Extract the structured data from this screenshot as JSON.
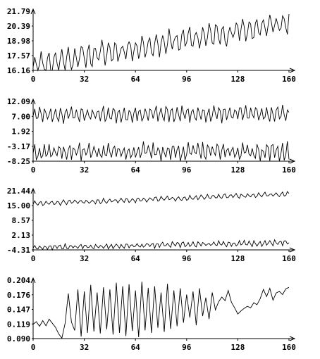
{
  "chart_data": [
    {
      "type": "line",
      "xlim": [
        0,
        160
      ],
      "ylim": [
        16.16,
        21.79
      ],
      "x_ticks": [
        "0",
        "32",
        "64",
        "96",
        "128",
        "160"
      ],
      "y_ticks": [
        "21.79",
        "20.39",
        "18.98",
        "17.57",
        "16.16"
      ],
      "series": [
        {
          "gen": {
            "n": 161,
            "base": 16.7,
            "trend": 4.0,
            "amp": 0.9,
            "period": 4.2,
            "noise": 0.45,
            "seed": 11
          }
        }
      ]
    },
    {
      "type": "line",
      "xlim": [
        0,
        160
      ],
      "ylim": [
        -8.25,
        12.09
      ],
      "x_ticks": [
        "0",
        "32",
        "64",
        "96",
        "128",
        "160"
      ],
      "y_ticks": [
        "12.09",
        "7.00",
        "1.92",
        "-3.17",
        "-8.25"
      ],
      "series": [
        {
          "gen": {
            "n": 161,
            "base": 7.6,
            "trend": 0.3,
            "amp": 2.3,
            "period": 3.3,
            "noise": 0.9,
            "seed": 23
          }
        },
        {
          "gen": {
            "n": 161,
            "base": -5.0,
            "trend": 0.0,
            "amp": 2.4,
            "period": 3.1,
            "noise": 1.2,
            "seed": 37
          }
        }
      ]
    },
    {
      "type": "line",
      "xlim": [
        0,
        160
      ],
      "ylim": [
        -4.31,
        21.44
      ],
      "x_ticks": [
        "0",
        "32",
        "64",
        "96",
        "128",
        "160"
      ],
      "y_ticks": [
        "21.44",
        "15.00",
        "8.57",
        "2.13",
        "-4.31"
      ],
      "series": [
        {
          "gen": {
            "n": 161,
            "base": 15.8,
            "trend": 4.2,
            "amp": 0.9,
            "period": 3.6,
            "noise": 0.4,
            "seed": 51
          }
        },
        {
          "gen": {
            "n": 161,
            "base": -3.2,
            "trend": 2.0,
            "amp": 1.0,
            "period": 3.2,
            "noise": 0.5,
            "seed": 67
          }
        }
      ]
    },
    {
      "type": "line",
      "xlim": [
        0,
        160
      ],
      "ylim": [
        0.09,
        0.204
      ],
      "x_ticks": [
        "0",
        "32",
        "64",
        "96",
        "128",
        "160"
      ],
      "y_ticks": [
        "0.204",
        "0.176",
        "0.147",
        "0.119",
        "0.090"
      ],
      "series": [
        {
          "x": [
            0,
            2,
            4,
            6,
            8,
            10,
            12,
            14,
            16,
            18,
            20,
            22,
            24,
            26,
            28,
            30,
            32,
            34,
            36,
            38,
            40,
            42,
            44,
            46,
            48,
            50,
            52,
            54,
            56,
            58,
            60,
            62,
            64,
            66,
            68,
            70,
            72,
            74,
            76,
            78,
            80,
            82,
            84,
            86,
            88,
            90,
            92,
            94,
            96,
            98,
            100,
            102,
            104,
            106,
            108,
            110,
            112,
            114,
            116,
            118,
            120,
            122,
            124,
            126,
            128,
            130,
            132,
            134,
            136,
            138,
            140,
            142,
            144,
            146,
            148,
            150,
            152,
            154,
            156,
            158,
            160
          ],
          "y": [
            0.118,
            0.123,
            0.114,
            0.125,
            0.115,
            0.128,
            0.12,
            0.112,
            0.099,
            0.091,
            0.12,
            0.178,
            0.122,
            0.106,
            0.186,
            0.094,
            0.182,
            0.101,
            0.195,
            0.104,
            0.18,
            0.1,
            0.19,
            0.108,
            0.186,
            0.098,
            0.199,
            0.101,
            0.192,
            0.095,
            0.196,
            0.105,
            0.184,
            0.093,
            0.201,
            0.106,
            0.189,
            0.101,
            0.192,
            0.111,
            0.18,
            0.103,
            0.197,
            0.109,
            0.184,
            0.114,
            0.188,
            0.121,
            0.176,
            0.131,
            0.182,
            0.116,
            0.188,
            0.134,
            0.17,
            0.128,
            0.18,
            0.146,
            0.162,
            0.171,
            0.164,
            0.184,
            0.161,
            0.15,
            0.138,
            0.144,
            0.149,
            0.153,
            0.15,
            0.16,
            0.156,
            0.168,
            0.186,
            0.172,
            0.188,
            0.165,
            0.179,
            0.182,
            0.176,
            0.187,
            0.19
          ]
        }
      ]
    }
  ]
}
